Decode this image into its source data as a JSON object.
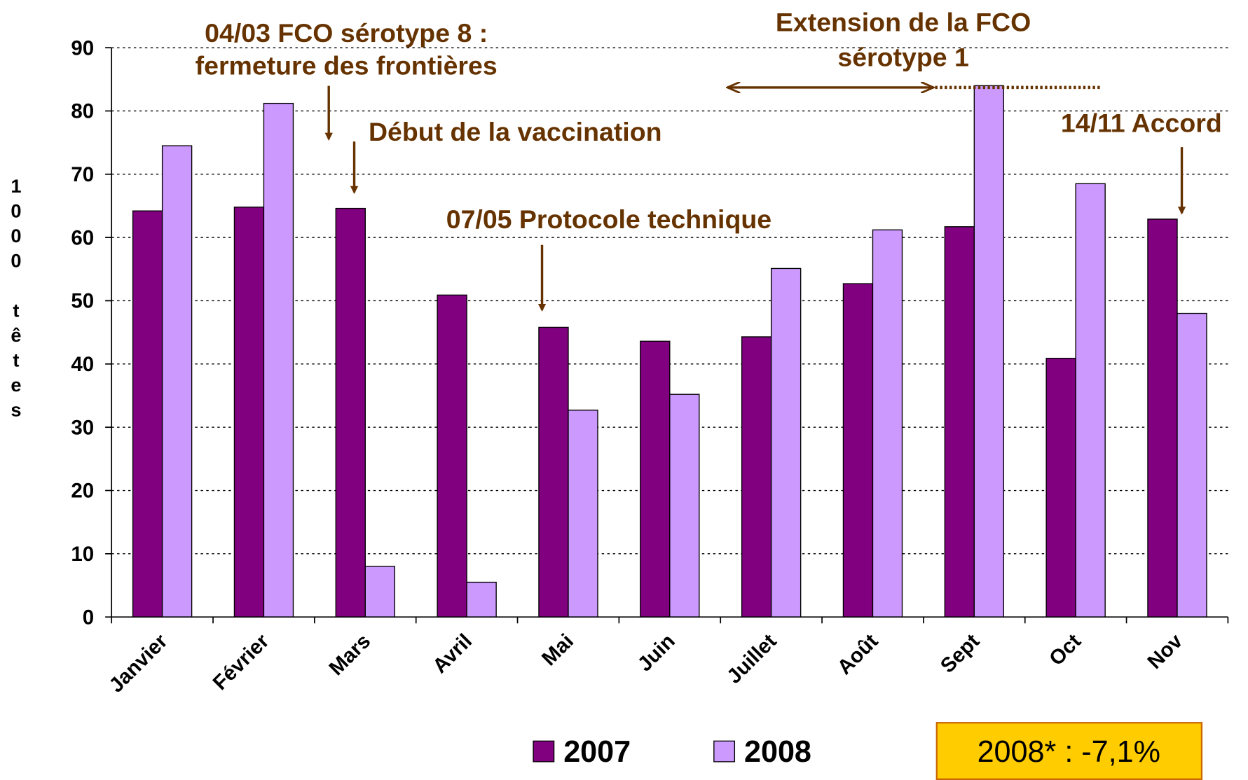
{
  "chart_data": {
    "type": "bar",
    "ylabel": "1000 têtes",
    "categories": [
      "Janvier",
      "Février",
      "Mars",
      "Avril",
      "Mai",
      "Juin",
      "Juillet",
      "Août",
      "Sept",
      "Oct",
      "Nov"
    ],
    "series": [
      {
        "name": "2007",
        "color": "#800080",
        "values": [
          64.2,
          64.8,
          64.6,
          50.9,
          45.8,
          43.6,
          44.3,
          52.7,
          61.7,
          40.9,
          62.9
        ]
      },
      {
        "name": "2008",
        "color": "#cc99ff",
        "values": [
          74.5,
          81.2,
          8.0,
          5.5,
          32.7,
          35.2,
          55.1,
          61.2,
          84.0,
          68.5,
          48.0
        ]
      }
    ],
    "ylim": [
      0,
      90
    ],
    "yticks": [
      0,
      10,
      20,
      30,
      40,
      50,
      60,
      70,
      80,
      90
    ],
    "grid": true,
    "annotations": [
      "04/03 FCO sérotype 8 :",
      "fermeture des frontières",
      "Début de la vaccination",
      "Extension de la FCO",
      "sérotype 1",
      "07/05 Protocole technique",
      "14/11 Accord"
    ],
    "note": "2008* : -7,1%"
  }
}
